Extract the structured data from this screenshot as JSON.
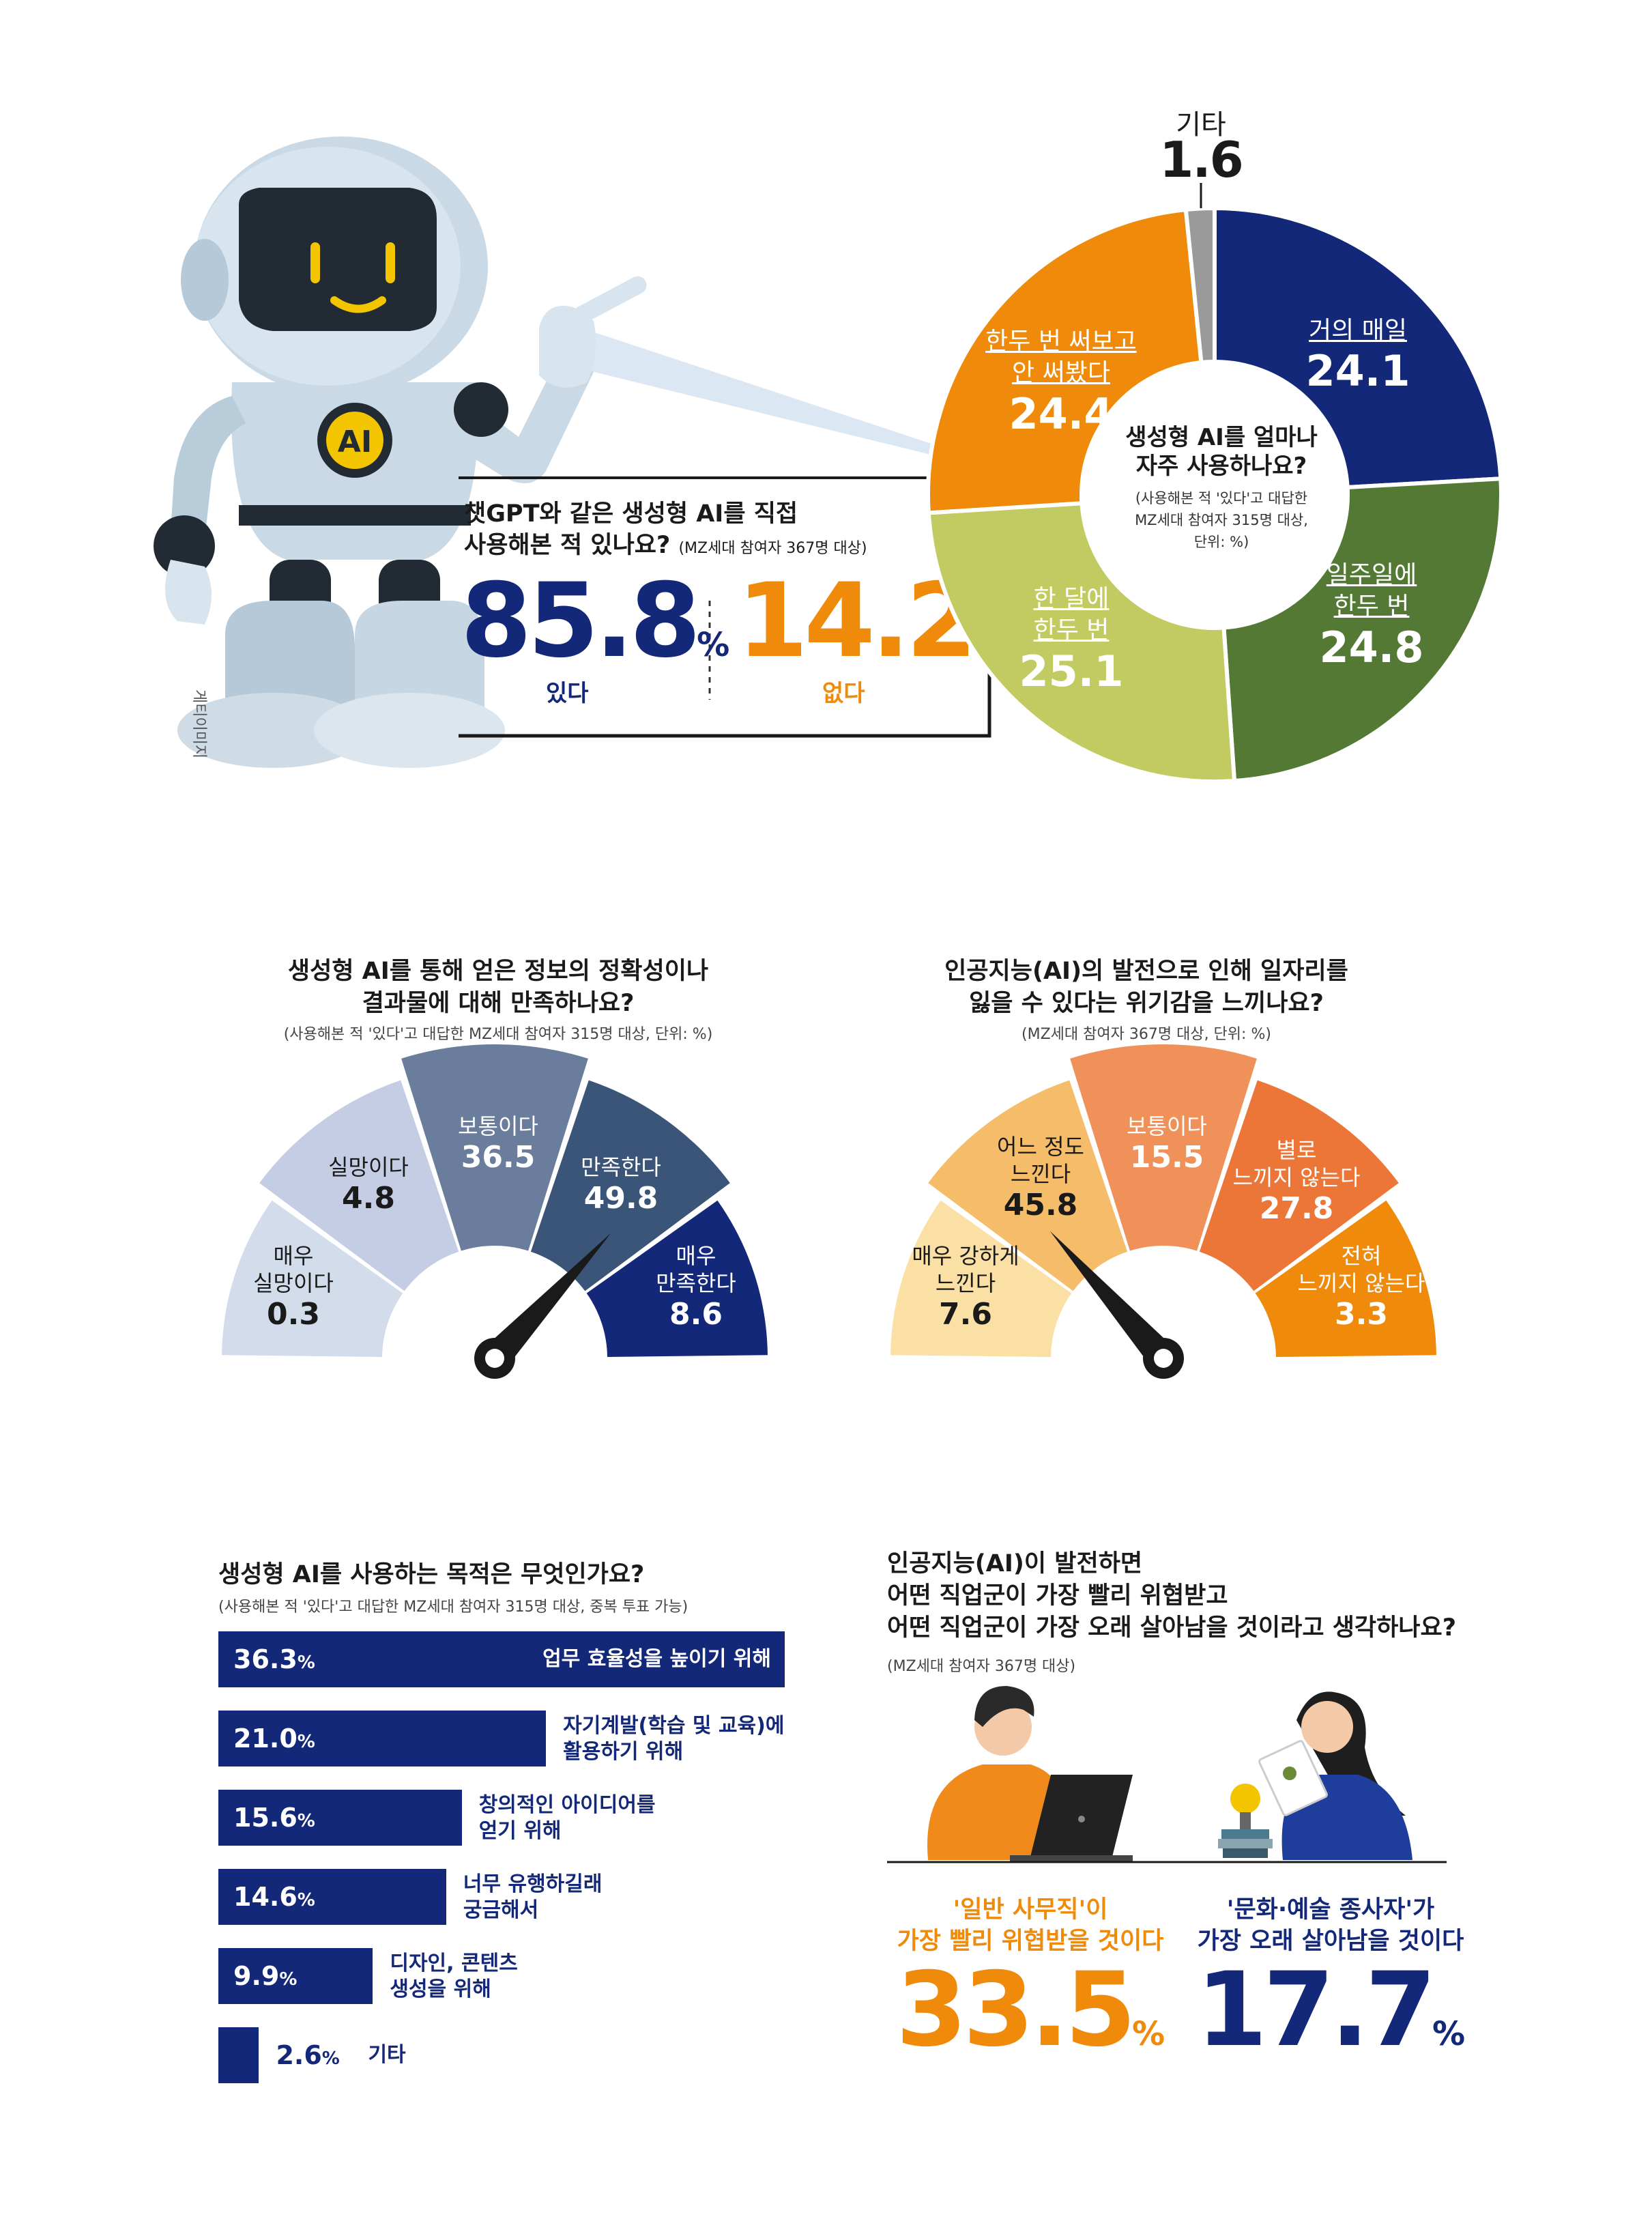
{
  "colors": {
    "navy": "#14287a",
    "orange": "#ef8a0a",
    "green_dark": "#537935",
    "green_light": "#c2cb62",
    "gray": "#9a9a9a"
  },
  "robot": {
    "badge": "AI",
    "credit": "게티이미지",
    "icon": "robot-pointing-icon"
  },
  "usage": {
    "question_line1": "챗GPT와 같은 생성형 AI를 직접",
    "question_line2": "사용해본 적 있나요?",
    "note": "(MZ세대 참여자 367명 대상)",
    "yes_value": "85.8",
    "yes_unit": "%",
    "yes_label": "있다",
    "no_value": "14.2",
    "no_unit": "%",
    "no_label": "없다"
  },
  "frequency": {
    "center_line1": "생성형 AI를 얼마나",
    "center_line2": "자주 사용하나요?",
    "center_note1": "(사용해본 적 '있다'고 대답한",
    "center_note2": "MZ세대 참여자 315명 대상,",
    "center_note3": "단위: %)",
    "other_label": "기타",
    "other_value": "1.6",
    "s1_l1": "거의 매일",
    "s1_value": "24.1",
    "s2_l1": "일주일에",
    "s2_l2": "한두 번",
    "s2_value": "24.8",
    "s3_l1": "한 달에",
    "s3_l2": "한두 번",
    "s3_value": "25.1",
    "s4_l1": "한두 번 써보고",
    "s4_l2": "안 써봤다",
    "s4_value": "24.4"
  },
  "satisfaction": {
    "title_line1": "생성형 AI를 통해 얻은 정보의 정확성이나",
    "title_line2": "결과물에 대해 만족하나요?",
    "note": "(사용해본 적 '있다'고 대답한 MZ세대 참여자 315명 대상, 단위: %)",
    "a_l1": "매우",
    "a_l2": "실망이다",
    "a_value": "0.3",
    "b_l1": "실망이다",
    "b_value": "4.8",
    "c_l1": "보통이다",
    "c_value": "36.5",
    "d_l1": "만족한다",
    "d_value": "49.8",
    "e_l1": "매우",
    "e_l2": "만족한다",
    "e_value": "8.6"
  },
  "jobloss": {
    "title_line1": "인공지능(AI)의 발전으로 인해 일자리를",
    "title_line2": "잃을 수 있다는 위기감을 느끼나요?",
    "note": "(MZ세대 참여자 367명 대상, 단위: %)",
    "a_l1": "매우 강하게",
    "a_l2": "느낀다",
    "a_value": "7.6",
    "b_l1": "어느 정도",
    "b_l2": "느낀다",
    "b_value": "45.8",
    "c_l1": "보통이다",
    "c_value": "15.5",
    "d_l1": "별로",
    "d_l2": "느끼지 않는다",
    "d_value": "27.8",
    "e_l1": "전혀",
    "e_l2": "느끼지 않는다",
    "e_value": "3.3"
  },
  "purpose": {
    "title": "생성형 AI를 사용하는 목적은 무엇인가요?",
    "note": "(사용해본 적 '있다'고 대답한 MZ세대 참여자 315명 대상, 중복 투표 가능)",
    "r1_pct": "36.3",
    "r1_l1": "업무 효율성을 높이기 위해",
    "r2_pct": "21.0",
    "r2_l1": "자기계발(학습 및 교육)에",
    "r2_l2": "활용하기 위해",
    "r3_pct": "15.6",
    "r3_l1": "창의적인 아이디어를",
    "r3_l2": "얻기 위해",
    "r4_pct": "14.6",
    "r4_l1": "너무 유행하길래",
    "r4_l2": "궁금해서",
    "r5_pct": "9.9",
    "r5_l1": "디자인, 콘텐츠",
    "r5_l2": "생성을 위해",
    "r6_pct": "2.6",
    "r6_l1": "기타",
    "unit": "%"
  },
  "jobs": {
    "title_line1": "인공지능(AI)이 발전하면",
    "title_line2": "어떤 직업군이 가장 빨리 위협받고",
    "title_line3": "어떤 직업군이 가장 오래 살아남을 것이라고 생각하나요?",
    "note": "(MZ세대 참여자 367명 대상)",
    "left_l1": "'일반 사무직'이",
    "left_l2": "가장 빨리 위협받을 것이다",
    "left_value": "33.5",
    "right_l1": "'문화·예술 종사자'가",
    "right_l2": "가장 오래 살아남을 것이다",
    "right_value": "17.7",
    "unit": "%",
    "left_icon": "office-worker-laptop-icon",
    "right_icon": "artist-woman-icon"
  },
  "chart_data": [
    {
      "type": "pie",
      "title": "챗GPT와 같은 생성형 AI를 직접 사용해본 적 있나요?",
      "categories": [
        "있다",
        "없다"
      ],
      "values": [
        85.8,
        14.2
      ],
      "unit": "%"
    },
    {
      "type": "pie",
      "title": "생성형 AI를 얼마나 자주 사용하나요?",
      "categories": [
        "거의 매일",
        "일주일에 한두 번",
        "한 달에 한두 번",
        "한두 번 써보고 안 써봤다",
        "기타"
      ],
      "values": [
        24.1,
        24.8,
        25.1,
        24.4,
        1.6
      ],
      "unit": "%"
    },
    {
      "type": "bar",
      "title": "생성형 AI를 통해 얻은 정보의 정확성이나 결과물에 대해 만족하나요?",
      "categories": [
        "매우 실망이다",
        "실망이다",
        "보통이다",
        "만족한다",
        "매우 만족한다"
      ],
      "values": [
        0.3,
        4.8,
        36.5,
        49.8,
        8.6
      ],
      "unit": "%"
    },
    {
      "type": "bar",
      "title": "인공지능(AI)의 발전으로 인해 일자리를 잃을 수 있다는 위기감을 느끼나요?",
      "categories": [
        "매우 강하게 느낀다",
        "어느 정도 느낀다",
        "보통이다",
        "별로 느끼지 않는다",
        "전혀 느끼지 않는다"
      ],
      "values": [
        7.6,
        45.8,
        15.5,
        27.8,
        3.3
      ],
      "unit": "%"
    },
    {
      "type": "bar",
      "title": "생성형 AI를 사용하는 목적은 무엇인가요?",
      "categories": [
        "업무 효율성을 높이기 위해",
        "자기계발(학습 및 교육)에 활용하기 위해",
        "창의적인 아이디어를 얻기 위해",
        "너무 유행하길래 궁금해서",
        "디자인, 콘텐츠 생성을 위해",
        "기타"
      ],
      "values": [
        36.3,
        21.0,
        15.6,
        14.6,
        9.9,
        2.6
      ],
      "unit": "%"
    },
    {
      "type": "bar",
      "title": "인공지능(AI)이 발전하면 어떤 직업군이 가장 빨리 위협받고 어떤 직업군이 가장 오래 살아남을 것이라고 생각하나요?",
      "categories": [
        "'일반 사무직'이 가장 빨리 위협받을 것이다",
        "'문화·예술 종사자'가 가장 오래 살아남을 것이다"
      ],
      "values": [
        33.5,
        17.7
      ],
      "unit": "%"
    }
  ]
}
